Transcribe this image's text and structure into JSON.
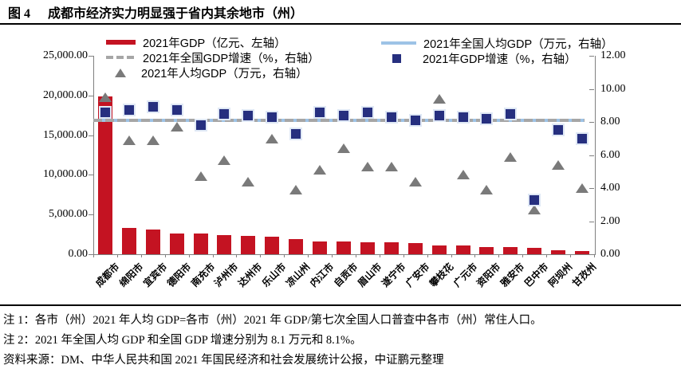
{
  "figure": {
    "label": "图 4",
    "title": "成都市经济实力明显强于省内其余地市（州）"
  },
  "legend": {
    "left": [
      {
        "label": "2021年GDP（亿元、左轴）",
        "marker": "thick-red-line"
      },
      {
        "label": "2021年全国GDP增速（%，右轴）",
        "marker": "gray-dashed-line"
      },
      {
        "label": "2021年人均GDP（万元，右轴）",
        "marker": "gray-triangle"
      }
    ],
    "right": [
      {
        "label": "2021年全国人均GDP（万元，右轴）",
        "marker": "light-blue-line"
      },
      {
        "label": "2021年GDP增速（%，右轴）",
        "marker": "navy-square"
      }
    ]
  },
  "chart_data": {
    "type": "bar",
    "title": "成都市经济实力明显强于省内其余地市（州）",
    "categories": [
      "成都市",
      "绵阳市",
      "宜宾市",
      "德阳市",
      "南充市",
      "泸州市",
      "达州市",
      "乐山市",
      "凉山州",
      "内江市",
      "自贡市",
      "眉山市",
      "遂宁市",
      "广安市",
      "攀枝花",
      "广元市",
      "资阳市",
      "雅安市",
      "巴中市",
      "阿坝州",
      "甘孜州"
    ],
    "series": [
      {
        "name": "2021年GDP（亿元、左轴）",
        "type": "bar",
        "axis": "left",
        "color": "#C41322",
        "values": [
          19917,
          3350,
          3148,
          2657,
          2602,
          2406,
          2352,
          2205,
          1901,
          1606,
          1601,
          1548,
          1477,
          1418,
          1134,
          1133,
          918,
          908,
          767,
          471,
          449
        ]
      },
      {
        "name": "2021年人均GDP（万元，右轴）",
        "type": "scatter-triangle",
        "axis": "right",
        "color": "#7A7A7A",
        "values": [
          9.5,
          6.9,
          6.9,
          7.7,
          4.7,
          5.7,
          4.4,
          7.0,
          3.9,
          5.1,
          6.4,
          5.3,
          5.3,
          4.4,
          9.4,
          4.8,
          3.9,
          5.9,
          2.7,
          5.4,
          4.0
        ]
      },
      {
        "name": "2021年GDP增速（%，右轴）",
        "type": "scatter-square",
        "axis": "right",
        "color": "#262F7F",
        "values": [
          8.6,
          8.7,
          8.9,
          8.7,
          7.8,
          8.5,
          8.4,
          8.3,
          7.3,
          8.6,
          8.4,
          8.6,
          8.3,
          8.1,
          8.4,
          8.3,
          8.2,
          8.5,
          3.3,
          7.5,
          7.0
        ]
      },
      {
        "name": "2021年全国人均GDP（万元，右轴）",
        "type": "hline",
        "axis": "right",
        "color": "#9DC3E6",
        "value": 8.1
      },
      {
        "name": "2021年全国GDP增速（%，右轴）",
        "type": "hline-dashed",
        "axis": "right",
        "color": "#A6A6A6",
        "value": 8.1
      }
    ],
    "left_axis": {
      "min": 0,
      "max": 25000,
      "step": 5000,
      "tick_labels": [
        "25,000.00",
        "20,000.00",
        "15,000.00",
        "10,000.00",
        "5,000.00",
        "0.00"
      ]
    },
    "right_axis": {
      "min": 0,
      "max": 12,
      "step": 2,
      "tick_labels": [
        "12.00",
        "10.00",
        "8.00",
        "6.00",
        "4.00",
        "2.00",
        "0.00"
      ]
    },
    "grid": false,
    "legend_position": "top"
  },
  "notes": {
    "note1": "注 1：各市（州）2021 年人均 GDP=各市（州）2021 年 GDP/第七次全国人口普查中各市（州）常住人口。",
    "note2": "注 2：2021 年全国人均 GDP 和全国 GDP 增速分别为 8.1 万元和 8.1%。",
    "source": "资料来源：DM、中华人民共和国 2021 年国民经济和社会发展统计公报，中证鹏元整理"
  },
  "colors": {
    "bar_red": "#C41322",
    "square_navy": "#262F7F",
    "triangle_gray": "#7A7A7A",
    "national_line_blue": "#9DC3E6",
    "national_line_gray_dash": "#A6A6A6",
    "axis_gray": "#808080",
    "text": "#000000"
  }
}
